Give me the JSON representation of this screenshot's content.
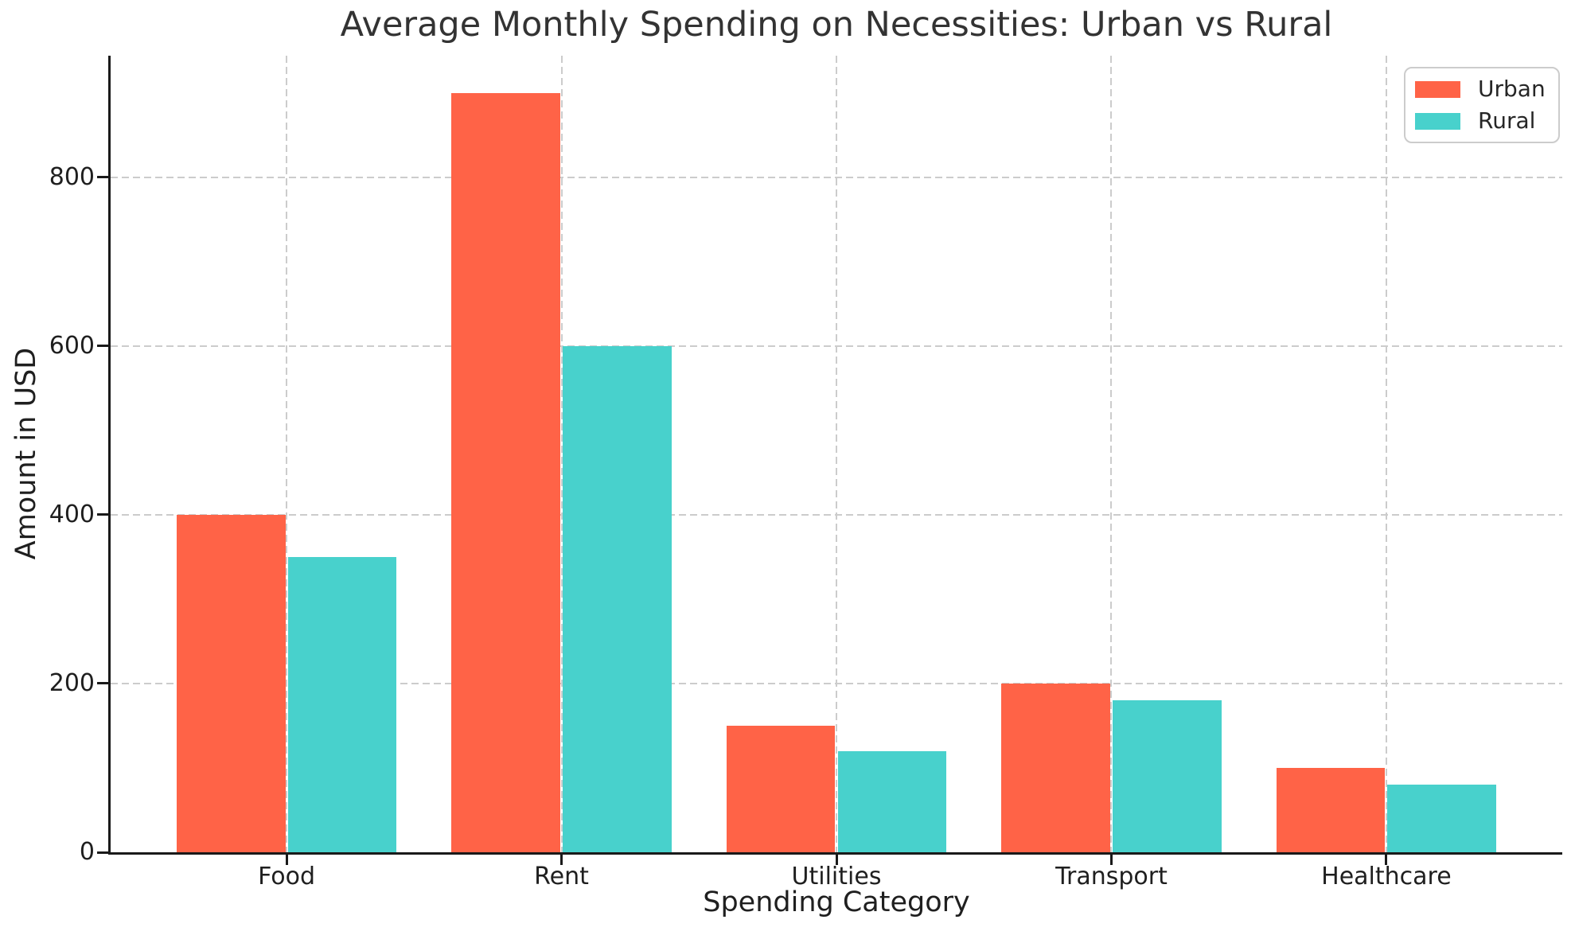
{
  "chart_data": {
    "type": "bar",
    "title": "Average Monthly Spending on Necessities: Urban vs Rural",
    "xlabel": "Spending Category",
    "ylabel": "Amount in USD",
    "categories": [
      "Food",
      "Rent",
      "Utilities",
      "Transport",
      "Healthcare"
    ],
    "series": [
      {
        "name": "Urban",
        "color": "#FF6347",
        "values": [
          400,
          900,
          150,
          200,
          100
        ]
      },
      {
        "name": "Rural",
        "color": "#48D1CC",
        "values": [
          350,
          600,
          120,
          180,
          80
        ]
      }
    ],
    "yticks": [
      0,
      200,
      400,
      600,
      800
    ],
    "ylim": [
      0,
      944
    ],
    "grid": "dashed light-gray gridlines on both axes, drawn below bars",
    "legend_position": "upper right",
    "bar_group_layout": "two bars per category, Urban left of center, Rural right of center"
  },
  "colors": {
    "urban": "#FF6347",
    "rural": "#48D1CC",
    "grid": "#cccccc",
    "spine": "#1a1a1a",
    "text": "#262626",
    "background": "#ffffff"
  }
}
